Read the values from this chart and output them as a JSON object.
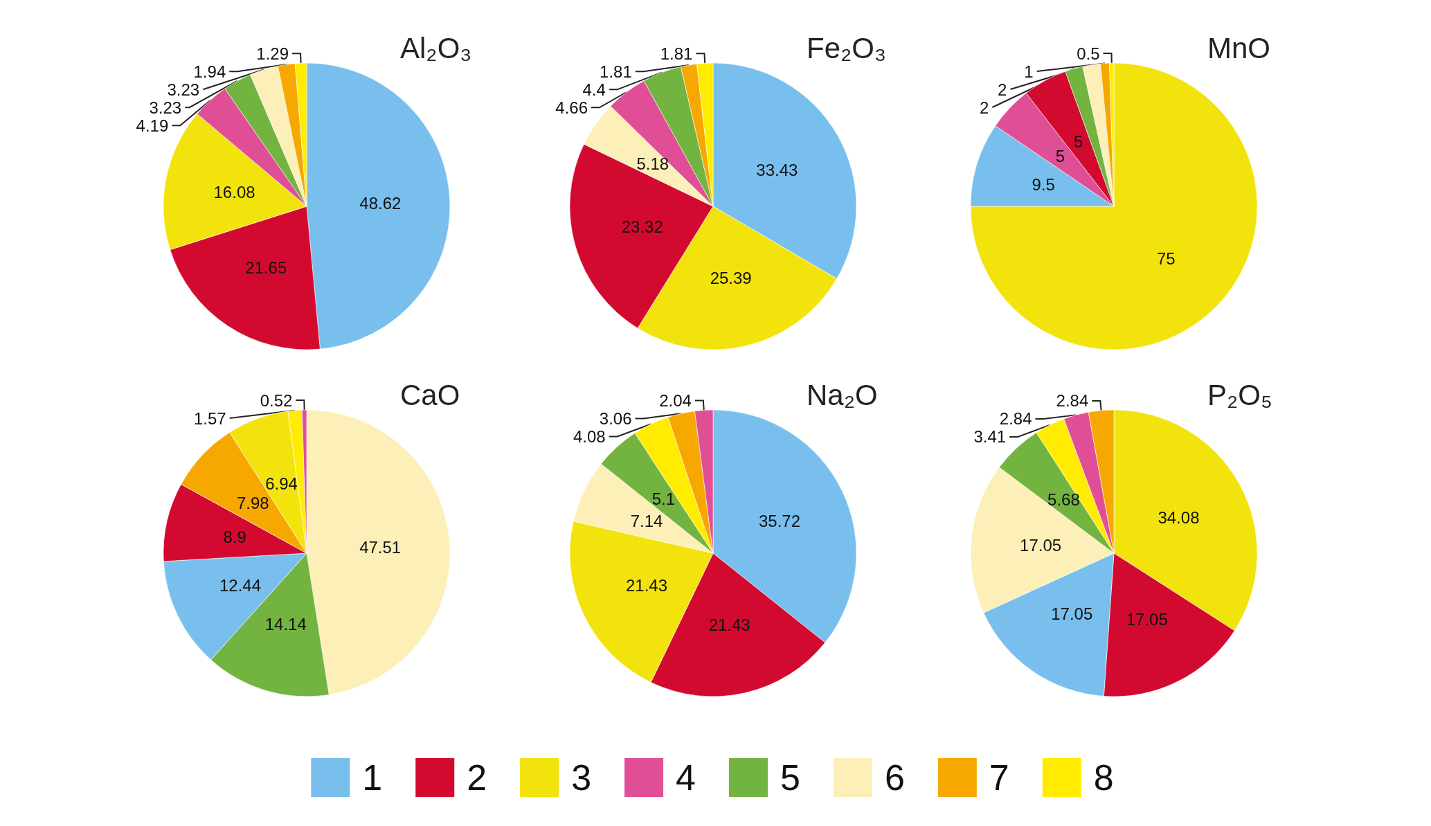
{
  "chart_data": [
    {
      "type": "pie",
      "title": "Al₂O₃",
      "categories": [
        null,
        null,
        null,
        null,
        null,
        null,
        null,
        null
      ],
      "values": [
        48.62,
        21.65,
        16.08,
        4.19,
        3.23,
        3.23,
        1.94,
        1.29
      ],
      "colors": [
        "#79bfee",
        "#d30a30",
        "#f2e30c",
        "#e04f95",
        "#73b340",
        "#fdefb8",
        "#f6a800",
        "#ffec00"
      ],
      "data_labels": true
    },
    {
      "type": "pie",
      "title": "Fe₂O₃",
      "categories": [
        null,
        null,
        null,
        null,
        null,
        null,
        null,
        null
      ],
      "values": [
        33.43,
        25.39,
        23.32,
        5.18,
        4.66,
        4.4,
        1.81,
        1.81
      ],
      "colors": [
        "#79bfee",
        "#f2e30c",
        "#d30a30",
        "#fdefb8",
        "#e04f95",
        "#73b340",
        "#f6a800",
        "#ffec00"
      ],
      "data_labels": true
    },
    {
      "type": "pie",
      "title": "MnO",
      "categories": [
        null,
        null,
        null,
        null,
        null,
        null,
        null,
        null
      ],
      "values": [
        75,
        9.5,
        5,
        5,
        2,
        2,
        1,
        0.5
      ],
      "colors": [
        "#f2e30c",
        "#79bfee",
        "#e04f95",
        "#d30a30",
        "#73b340",
        "#fdefb8",
        "#f6a800",
        "#ffec00"
      ],
      "data_labels": true
    },
    {
      "type": "pie",
      "title": "CaO",
      "categories": [
        null,
        null,
        null,
        null,
        null,
        null,
        null,
        null
      ],
      "values": [
        47.51,
        14.14,
        12.44,
        8.9,
        7.98,
        6.94,
        1.57,
        0.52
      ],
      "colors": [
        "#fdefb8",
        "#73b340",
        "#79bfee",
        "#d30a30",
        "#f6a800",
        "#f2e30c",
        "#ffec00",
        "#e04f95"
      ],
      "data_labels": true
    },
    {
      "type": "pie",
      "title": "Na₂O",
      "categories": [
        null,
        null,
        null,
        null,
        null,
        null,
        null,
        null
      ],
      "values": [
        35.72,
        21.43,
        21.43,
        7.14,
        5.1,
        4.08,
        3.06,
        2.04
      ],
      "colors": [
        "#79bfee",
        "#d30a30",
        "#f2e30c",
        "#fdefb8",
        "#73b340",
        "#ffec00",
        "#f6a800",
        "#e04f95"
      ],
      "data_labels": true
    },
    {
      "type": "pie",
      "title": "P₂O₅",
      "categories": [
        "3",
        "2",
        "1",
        "6",
        "5",
        "8",
        "4",
        "7"
      ],
      "values": [
        34.08,
        17.05,
        17.05,
        17.05,
        5.68,
        3.41,
        2.84,
        2.84
      ],
      "colors": [
        "#f2e30c",
        "#d30a30",
        "#79bfee",
        "#fdefb8",
        "#73b340",
        "#ffec00",
        "#e04f95",
        "#f6a800"
      ],
      "data_labels": true,
      "legend": "bottom"
    }
  ]
}
